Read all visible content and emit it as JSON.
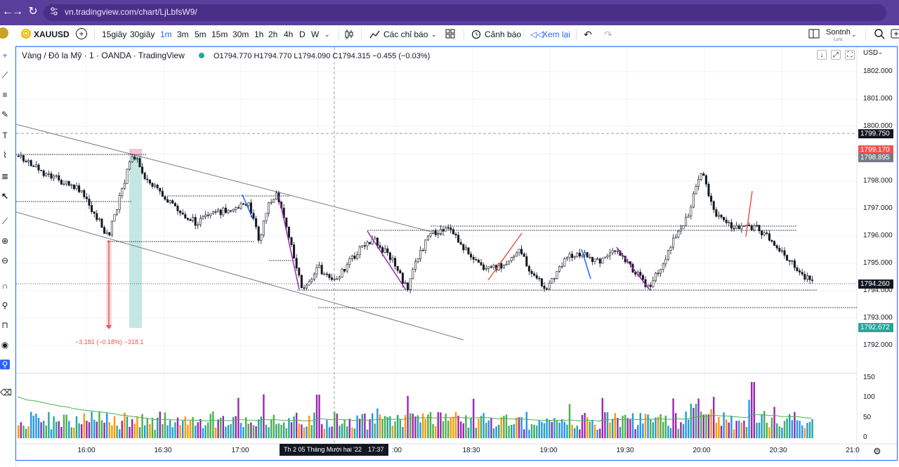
{
  "browser": {
    "url": "vn.tradingview.com/chart/LjLbfsW9/"
  },
  "toolbar": {
    "symbol": "XAUUSD",
    "intervals": [
      "15giây",
      "30giây",
      "1m",
      "3m",
      "5m",
      "15m",
      "30m",
      "1h",
      "2h",
      "4h",
      "D",
      "W"
    ],
    "active_interval": "1m",
    "indicators_label": "Các chỉ báo",
    "alert_label": "Cảnh báo",
    "replay_label": "Xem lại",
    "layout_name": "Sontnh",
    "layout_sub": "Lưu"
  },
  "legend": {
    "title": "Vàng / Đô la Mỹ · 1 · OANDA · TradingView",
    "ohlc": "O1794.770 H1794.770 L1794.090 C1794.315 −0.455 (−0.03%)"
  },
  "price_axis": {
    "currency": "USD",
    "ticks": [
      "1802.000",
      "1801.000",
      "1800.000",
      "1798.000",
      "1797.000",
      "1796.000",
      "1795.000",
      "1794.000",
      "1793.000",
      "1792.000"
    ],
    "labels": {
      "crosshair": "1799.750",
      "ask": "1799.170",
      "bid": "1798.895",
      "last": "1794.260",
      "low_line": "1792.672"
    }
  },
  "volume_axis": {
    "ticks": [
      "150",
      "100",
      "50",
      "0"
    ]
  },
  "time_axis": {
    "ticks": [
      "16:00",
      "16:30",
      "17:00",
      "18:30",
      "19:00",
      "19:30",
      "20:00",
      "20:30",
      "21:0"
    ],
    "crosshair_date": "Th 2 05 Tháng Mười hai '22",
    "crosshair_time": "17:37",
    "partial_18": ":00"
  },
  "measure": {
    "label": "−3.181 (−0.18%) −318.1"
  },
  "colors": {
    "up": "#26a69a",
    "down": "#ef5350",
    "brand": "#2962ff",
    "chrome": "#5a3e9c"
  }
}
